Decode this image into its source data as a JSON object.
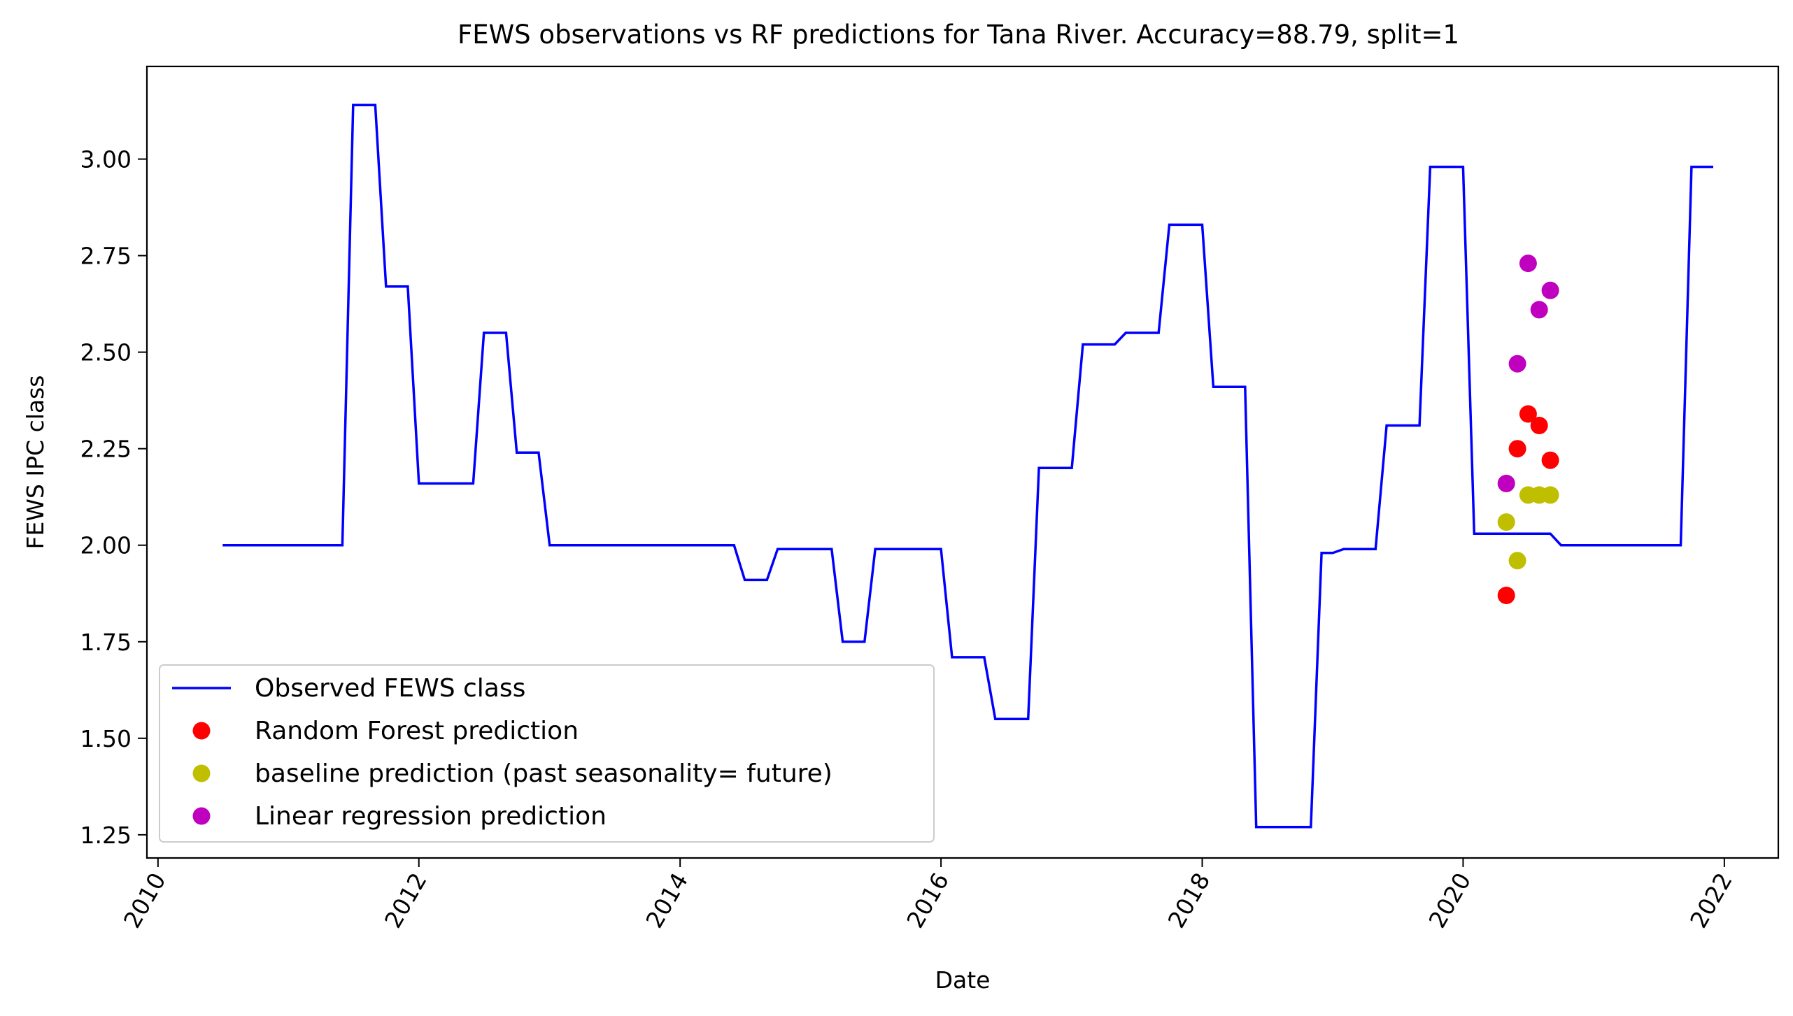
{
  "chart_data": {
    "type": "line",
    "title": "FEWS observations vs RF predictions for Tana River. Accuracy=88.79, split=1",
    "xlabel": "Date",
    "ylabel": "FEWS IPC class",
    "xlim": [
      "2009-12-01",
      "2022-06-01"
    ],
    "ylim": [
      1.19,
      3.24
    ],
    "x_ticks": [
      "2010",
      "2012",
      "2014",
      "2016",
      "2018",
      "2020",
      "2022"
    ],
    "y_ticks": [
      "1.25",
      "1.50",
      "1.75",
      "2.00",
      "2.25",
      "2.50",
      "2.75",
      "3.00"
    ],
    "grid": false,
    "legend_position": "lower-left",
    "series": [
      {
        "name": "Observed FEWS class",
        "type": "line",
        "color": "#0000ff",
        "points": [
          [
            "2010-07-01",
            2.0
          ],
          [
            "2011-06-01",
            2.0
          ],
          [
            "2011-07-01",
            3.14
          ],
          [
            "2011-09-01",
            3.14
          ],
          [
            "2011-10-01",
            2.67
          ],
          [
            "2011-12-01",
            2.67
          ],
          [
            "2012-01-01",
            2.16
          ],
          [
            "2012-06-01",
            2.16
          ],
          [
            "2012-07-01",
            2.55
          ],
          [
            "2012-09-01",
            2.55
          ],
          [
            "2012-10-01",
            2.24
          ],
          [
            "2012-12-01",
            2.24
          ],
          [
            "2013-01-01",
            2.0
          ],
          [
            "2014-06-01",
            2.0
          ],
          [
            "2014-07-01",
            1.91
          ],
          [
            "2014-09-01",
            1.91
          ],
          [
            "2014-10-01",
            1.99
          ],
          [
            "2015-03-01",
            1.99
          ],
          [
            "2015-04-01",
            1.75
          ],
          [
            "2015-06-01",
            1.75
          ],
          [
            "2015-07-01",
            1.99
          ],
          [
            "2016-01-01",
            1.99
          ],
          [
            "2016-02-01",
            1.71
          ],
          [
            "2016-05-01",
            1.71
          ],
          [
            "2016-06-01",
            1.55
          ],
          [
            "2016-09-01",
            1.55
          ],
          [
            "2016-10-01",
            2.2
          ],
          [
            "2017-01-01",
            2.2
          ],
          [
            "2017-02-01",
            2.52
          ],
          [
            "2017-05-01",
            2.52
          ],
          [
            "2017-06-01",
            2.55
          ],
          [
            "2017-09-01",
            2.55
          ],
          [
            "2017-10-01",
            2.83
          ],
          [
            "2018-01-01",
            2.83
          ],
          [
            "2018-02-01",
            2.41
          ],
          [
            "2018-05-01",
            2.41
          ],
          [
            "2018-06-01",
            1.27
          ],
          [
            "2018-11-01",
            1.27
          ],
          [
            "2018-12-01",
            1.98
          ],
          [
            "2019-01-01",
            1.98
          ],
          [
            "2019-02-01",
            1.99
          ],
          [
            "2019-05-01",
            1.99
          ],
          [
            "2019-06-01",
            2.31
          ],
          [
            "2019-09-01",
            2.31
          ],
          [
            "2019-10-01",
            2.98
          ],
          [
            "2020-01-01",
            2.98
          ],
          [
            "2020-02-01",
            2.03
          ],
          [
            "2020-09-01",
            2.03
          ],
          [
            "2020-10-01",
            2.0
          ],
          [
            "2021-09-01",
            2.0
          ],
          [
            "2021-10-01",
            2.98
          ],
          [
            "2021-12-01",
            2.98
          ]
        ]
      },
      {
        "name": "Random Forest prediction",
        "type": "scatter",
        "color": "#ff0000",
        "points": [
          [
            "2020-05-01",
            1.87
          ],
          [
            "2020-06-01",
            2.25
          ],
          [
            "2020-07-01",
            2.34
          ],
          [
            "2020-08-01",
            2.31
          ],
          [
            "2020-09-01",
            2.22
          ]
        ]
      },
      {
        "name": "baseline prediction (past seasonality= future)",
        "type": "scatter",
        "color": "#bfbf00",
        "points": [
          [
            "2020-05-01",
            2.06
          ],
          [
            "2020-06-01",
            1.96
          ],
          [
            "2020-07-01",
            2.13
          ],
          [
            "2020-08-01",
            2.13
          ],
          [
            "2020-09-01",
            2.13
          ]
        ]
      },
      {
        "name": "Linear regression prediction",
        "type": "scatter",
        "color": "#bf00bf",
        "points": [
          [
            "2020-05-01",
            2.16
          ],
          [
            "2020-06-01",
            2.47
          ],
          [
            "2020-07-01",
            2.73
          ],
          [
            "2020-08-01",
            2.61
          ],
          [
            "2020-09-01",
            2.66
          ]
        ]
      }
    ]
  }
}
